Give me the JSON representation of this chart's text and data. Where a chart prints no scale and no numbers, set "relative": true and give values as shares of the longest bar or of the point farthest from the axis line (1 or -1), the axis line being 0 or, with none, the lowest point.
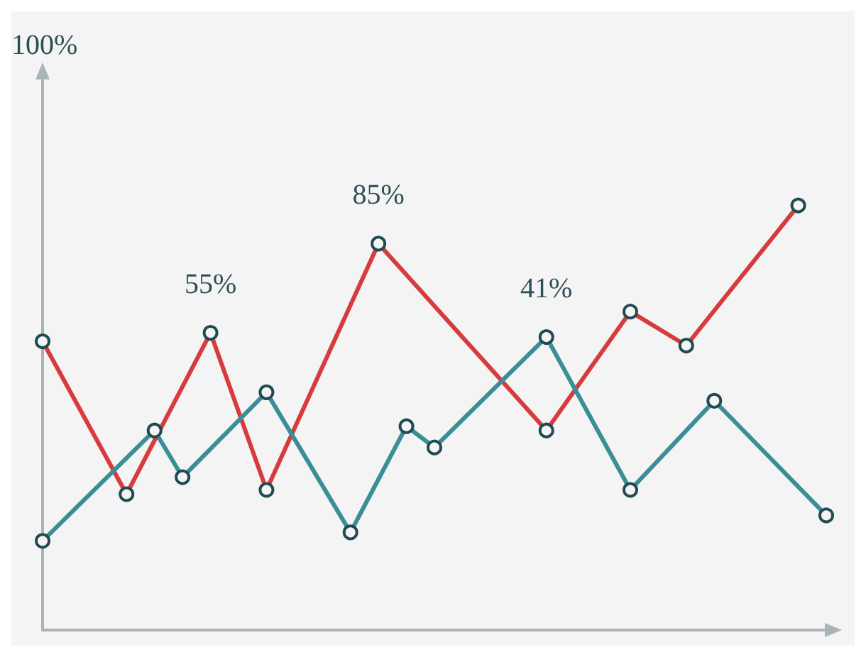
{
  "chart_data": {
    "type": "line",
    "relative": true,
    "grid": false,
    "marker": "circle",
    "line_style": "solid",
    "categories": [
      null,
      null,
      null,
      null,
      null,
      null,
      null,
      null,
      null,
      null,
      null,
      null,
      null,
      null,
      null,
      null,
      null,
      null,
      null,
      null,
      null,
      null,
      null,
      null,
      null,
      null,
      null,
      null,
      null
    ],
    "annotations": [
      "100%",
      {
        "text": "55%",
        "y": 0.7
      },
      {
        "text": "85%",
        "y": 0.91
      },
      {
        "text": "41%",
        "y": 0.69
      }
    ],
    "series": [
      {
        "color": "#d63b3d",
        "values": [
          0.68,
          null,
          null,
          0.32,
          null,
          null,
          0.7,
          null,
          0.33,
          null,
          null,
          null,
          0.91,
          null,
          null,
          null,
          null,
          null,
          0.47,
          null,
          null,
          0.75,
          null,
          0.67,
          null,
          null,
          null,
          1,
          null
        ]
      },
      {
        "color": "#3b8e96",
        "values": [
          0.21,
          null,
          null,
          null,
          0.47,
          0.36,
          null,
          null,
          0.56,
          null,
          null,
          0.23,
          null,
          0.48,
          0.43,
          null,
          null,
          null,
          0.69,
          null,
          null,
          0.33,
          null,
          null,
          0.54,
          null,
          null,
          null,
          0.27
        ]
      }
    ]
  }
}
